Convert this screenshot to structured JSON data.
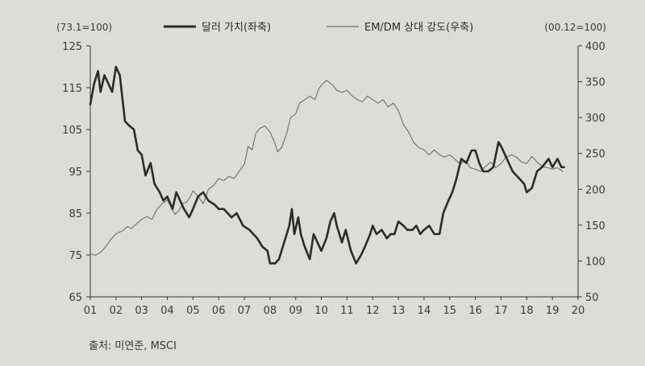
{
  "source": "출처: 미연준, MSCI",
  "chart_data": {
    "type": "line",
    "left_unit": "(73.1=100)",
    "right_unit": "(00.12=100)",
    "x_ticks": [
      "01",
      "02",
      "03",
      "04",
      "05",
      "06",
      "07",
      "08",
      "09",
      "10",
      "11",
      "12",
      "13",
      "14",
      "15",
      "16",
      "17",
      "18",
      "19",
      "20"
    ],
    "xlim": [
      2001,
      2020
    ],
    "y_left": {
      "ticks": [
        65,
        75,
        85,
        95,
        105,
        115,
        125
      ],
      "lim": [
        65,
        125
      ]
    },
    "y_right": {
      "ticks": [
        50,
        100,
        150,
        200,
        250,
        300,
        350,
        400
      ],
      "lim": [
        50,
        400
      ]
    },
    "legend_position": "top",
    "series": [
      {
        "name": "달러 가치(좌축)",
        "axis": "left",
        "color": "#2b2b2b",
        "points": [
          [
            2001.0,
            111
          ],
          [
            2001.15,
            116
          ],
          [
            2001.3,
            119
          ],
          [
            2001.4,
            114
          ],
          [
            2001.55,
            118
          ],
          [
            2001.7,
            116
          ],
          [
            2001.85,
            114
          ],
          [
            2002.0,
            120
          ],
          [
            2002.15,
            118
          ],
          [
            2002.35,
            107
          ],
          [
            2002.5,
            106
          ],
          [
            2002.7,
            105
          ],
          [
            2002.85,
            100
          ],
          [
            2003.0,
            99
          ],
          [
            2003.15,
            94
          ],
          [
            2003.35,
            97
          ],
          [
            2003.5,
            92
          ],
          [
            2003.7,
            90
          ],
          [
            2003.85,
            88
          ],
          [
            2004.0,
            89
          ],
          [
            2004.2,
            86
          ],
          [
            2004.35,
            90
          ],
          [
            2004.5,
            88
          ],
          [
            2004.65,
            86
          ],
          [
            2004.85,
            84
          ],
          [
            2005.0,
            86
          ],
          [
            2005.2,
            89
          ],
          [
            2005.4,
            90
          ],
          [
            2005.6,
            88
          ],
          [
            2005.85,
            87
          ],
          [
            2006.0,
            86
          ],
          [
            2006.2,
            86
          ],
          [
            2006.5,
            84
          ],
          [
            2006.7,
            85
          ],
          [
            2006.95,
            82
          ],
          [
            2007.2,
            81
          ],
          [
            2007.5,
            79
          ],
          [
            2007.7,
            77
          ],
          [
            2007.9,
            76
          ],
          [
            2008.0,
            73
          ],
          [
            2008.2,
            73
          ],
          [
            2008.35,
            74
          ],
          [
            2008.55,
            78
          ],
          [
            2008.75,
            82
          ],
          [
            2008.85,
            86
          ],
          [
            2008.95,
            80
          ],
          [
            2009.1,
            84
          ],
          [
            2009.2,
            80
          ],
          [
            2009.35,
            77
          ],
          [
            2009.55,
            74
          ],
          [
            2009.7,
            80
          ],
          [
            2009.85,
            78
          ],
          [
            2010.0,
            76
          ],
          [
            2010.2,
            79
          ],
          [
            2010.35,
            83
          ],
          [
            2010.5,
            85
          ],
          [
            2010.6,
            82
          ],
          [
            2010.8,
            78
          ],
          [
            2010.95,
            81
          ],
          [
            2011.15,
            76
          ],
          [
            2011.35,
            73
          ],
          [
            2011.55,
            75
          ],
          [
            2011.7,
            77
          ],
          [
            2011.9,
            80
          ],
          [
            2012.0,
            82
          ],
          [
            2012.15,
            80
          ],
          [
            2012.35,
            81
          ],
          [
            2012.55,
            79
          ],
          [
            2012.7,
            80
          ],
          [
            2012.85,
            80
          ],
          [
            2013.0,
            83
          ],
          [
            2013.2,
            82
          ],
          [
            2013.35,
            81
          ],
          [
            2013.55,
            81
          ],
          [
            2013.7,
            82
          ],
          [
            2013.85,
            80
          ],
          [
            2014.0,
            81
          ],
          [
            2014.2,
            82
          ],
          [
            2014.4,
            80
          ],
          [
            2014.6,
            80
          ],
          [
            2014.75,
            85
          ],
          [
            2014.95,
            88
          ],
          [
            2015.1,
            90
          ],
          [
            2015.25,
            93
          ],
          [
            2015.45,
            98
          ],
          [
            2015.65,
            97
          ],
          [
            2015.85,
            100
          ],
          [
            2016.0,
            100
          ],
          [
            2016.15,
            97
          ],
          [
            2016.3,
            95
          ],
          [
            2016.5,
            95
          ],
          [
            2016.7,
            96
          ],
          [
            2016.9,
            102
          ],
          [
            2017.0,
            101
          ],
          [
            2017.15,
            99
          ],
          [
            2017.3,
            97
          ],
          [
            2017.45,
            95
          ],
          [
            2017.6,
            94
          ],
          [
            2017.75,
            93
          ],
          [
            2017.9,
            92
          ],
          [
            2018.0,
            90
          ],
          [
            2018.2,
            91
          ],
          [
            2018.4,
            95
          ],
          [
            2018.6,
            96
          ],
          [
            2018.85,
            98
          ],
          [
            2019.0,
            96
          ],
          [
            2019.2,
            98
          ],
          [
            2019.35,
            96
          ],
          [
            2019.45,
            96
          ]
        ]
      },
      {
        "name": "EM/DM 상대 강도(우축)",
        "axis": "right",
        "color": "#6e6e6e",
        "points": [
          [
            2001.0,
            110
          ],
          [
            2001.2,
            108
          ],
          [
            2001.4,
            112
          ],
          [
            2001.6,
            120
          ],
          [
            2001.8,
            130
          ],
          [
            2002.0,
            138
          ],
          [
            2002.25,
            142
          ],
          [
            2002.45,
            148
          ],
          [
            2002.6,
            145
          ],
          [
            2002.8,
            152
          ],
          [
            2003.0,
            158
          ],
          [
            2003.2,
            162
          ],
          [
            2003.4,
            158
          ],
          [
            2003.6,
            172
          ],
          [
            2003.8,
            180
          ],
          [
            2004.0,
            185
          ],
          [
            2004.15,
            175
          ],
          [
            2004.3,
            165
          ],
          [
            2004.45,
            170
          ],
          [
            2004.6,
            180
          ],
          [
            2004.75,
            182
          ],
          [
            2004.9,
            190
          ],
          [
            2005.0,
            198
          ],
          [
            2005.2,
            190
          ],
          [
            2005.4,
            180
          ],
          [
            2005.6,
            200
          ],
          [
            2005.8,
            205
          ],
          [
            2006.0,
            215
          ],
          [
            2006.2,
            212
          ],
          [
            2006.4,
            218
          ],
          [
            2006.6,
            215
          ],
          [
            2006.8,
            225
          ],
          [
            2007.0,
            235
          ],
          [
            2007.15,
            260
          ],
          [
            2007.3,
            255
          ],
          [
            2007.45,
            278
          ],
          [
            2007.6,
            285
          ],
          [
            2007.8,
            288
          ],
          [
            2008.0,
            280
          ],
          [
            2008.15,
            268
          ],
          [
            2008.3,
            252
          ],
          [
            2008.45,
            258
          ],
          [
            2008.65,
            278
          ],
          [
            2008.8,
            300
          ],
          [
            2009.0,
            305
          ],
          [
            2009.15,
            320
          ],
          [
            2009.35,
            325
          ],
          [
            2009.55,
            330
          ],
          [
            2009.75,
            325
          ],
          [
            2009.9,
            340
          ],
          [
            2010.0,
            345
          ],
          [
            2010.2,
            352
          ],
          [
            2010.45,
            345
          ],
          [
            2010.6,
            338
          ],
          [
            2010.8,
            335
          ],
          [
            2011.0,
            338
          ],
          [
            2011.2,
            330
          ],
          [
            2011.4,
            325
          ],
          [
            2011.6,
            322
          ],
          [
            2011.8,
            330
          ],
          [
            2012.0,
            325
          ],
          [
            2012.2,
            320
          ],
          [
            2012.4,
            325
          ],
          [
            2012.6,
            315
          ],
          [
            2012.8,
            320
          ],
          [
            2013.0,
            310
          ],
          [
            2013.2,
            290
          ],
          [
            2013.4,
            280
          ],
          [
            2013.6,
            265
          ],
          [
            2013.8,
            258
          ],
          [
            2014.0,
            255
          ],
          [
            2014.2,
            248
          ],
          [
            2014.4,
            255
          ],
          [
            2014.6,
            248
          ],
          [
            2014.8,
            245
          ],
          [
            2015.0,
            248
          ],
          [
            2015.2,
            242
          ],
          [
            2015.4,
            235
          ],
          [
            2015.6,
            240
          ],
          [
            2015.8,
            230
          ],
          [
            2016.0,
            228
          ],
          [
            2016.2,
            225
          ],
          [
            2016.4,
            232
          ],
          [
            2016.6,
            238
          ],
          [
            2016.8,
            230
          ],
          [
            2017.0,
            236
          ],
          [
            2017.2,
            245
          ],
          [
            2017.4,
            248
          ],
          [
            2017.6,
            245
          ],
          [
            2017.8,
            238
          ],
          [
            2018.0,
            236
          ],
          [
            2018.2,
            246
          ],
          [
            2018.4,
            238
          ],
          [
            2018.6,
            232
          ],
          [
            2018.8,
            230
          ],
          [
            2019.0,
            228
          ],
          [
            2019.2,
            230
          ],
          [
            2019.4,
            225
          ]
        ]
      }
    ]
  }
}
